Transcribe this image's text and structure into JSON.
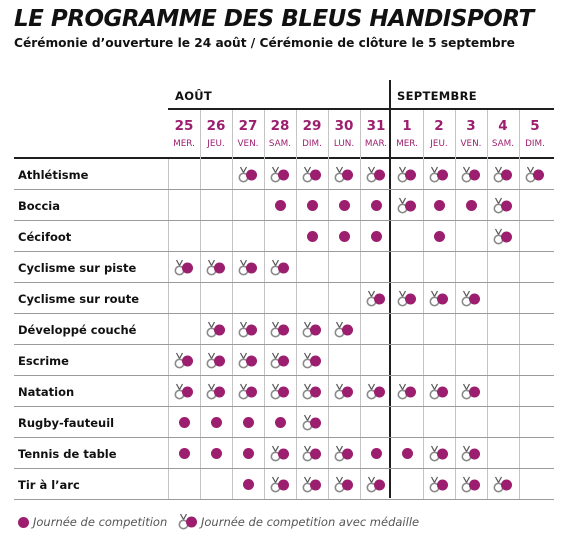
{
  "title": "LE PROGRAMME DES BLEUS HANDISPORT",
  "subtitle": "Cérémonie d’ouverture le 24 août / Cérémonie de clôture le 5 septembre",
  "months": [
    "AOÛT",
    "SEPTEMBRE"
  ],
  "days": [
    {
      "num": "25",
      "name": "MER."
    },
    {
      "num": "26",
      "name": "JEU."
    },
    {
      "num": "27",
      "name": "VEN."
    },
    {
      "num": "28",
      "name": "SAM."
    },
    {
      "num": "29",
      "name": "DIM."
    },
    {
      "num": "30",
      "name": "LUN."
    },
    {
      "num": "31",
      "name": "MAR."
    },
    {
      "num": "1",
      "name": "MER."
    },
    {
      "num": "2",
      "name": "JEU."
    },
    {
      "num": "3",
      "name": "VEN."
    },
    {
      "num": "4",
      "name": "SAM."
    },
    {
      "num": "5",
      "name": "DIM."
    }
  ],
  "sports": [
    {
      "name": "Athlétisme",
      "cells": [
        "",
        "",
        "M",
        "M",
        "M",
        "M",
        "M",
        "M",
        "M",
        "M",
        "M",
        "M"
      ]
    },
    {
      "name": "Boccia",
      "cells": [
        "",
        "",
        "",
        "D",
        "D",
        "D",
        "D",
        "M",
        "D",
        "D",
        "M",
        ""
      ]
    },
    {
      "name": "Cécifoot",
      "cells": [
        "",
        "",
        "",
        "",
        "D",
        "D",
        "D",
        "",
        "D",
        "",
        "M",
        ""
      ]
    },
    {
      "name": "Cyclisme sur piste",
      "cells": [
        "M",
        "M",
        "M",
        "M",
        "",
        "",
        "",
        "",
        "",
        "",
        "",
        ""
      ]
    },
    {
      "name": "Cyclisme sur route",
      "cells": [
        "",
        "",
        "",
        "",
        "",
        "",
        "M",
        "M",
        "M",
        "M",
        "",
        ""
      ]
    },
    {
      "name": "Développé couché",
      "cells": [
        "",
        "M",
        "M",
        "M",
        "M",
        "M",
        "",
        "",
        "",
        "",
        "",
        ""
      ]
    },
    {
      "name": "Escrime",
      "cells": [
        "M",
        "M",
        "M",
        "M",
        "M",
        "",
        "",
        "",
        "",
        "",
        "",
        ""
      ]
    },
    {
      "name": "Natation",
      "cells": [
        "M",
        "M",
        "M",
        "M",
        "M",
        "M",
        "M",
        "M",
        "M",
        "M",
        "",
        ""
      ]
    },
    {
      "name": "Rugby-fauteuil",
      "cells": [
        "D",
        "D",
        "D",
        "D",
        "M",
        "",
        "",
        "",
        "",
        "",
        "",
        ""
      ]
    },
    {
      "name": "Tennis de table",
      "cells": [
        "D",
        "D",
        "D",
        "M",
        "M",
        "M",
        "D",
        "D",
        "M",
        "M",
        "",
        ""
      ]
    },
    {
      "name": "Tir à l’arc",
      "cells": [
        "",
        "",
        "D",
        "M",
        "M",
        "M",
        "M",
        "",
        "M",
        "M",
        "M",
        ""
      ]
    }
  ],
  "legend": {
    "competition": "Journée de competition",
    "medal": "Journée de competition avec médaille"
  },
  "colors": {
    "accent": "#9c1e6e",
    "medal_ring": "#8a8a8a"
  }
}
